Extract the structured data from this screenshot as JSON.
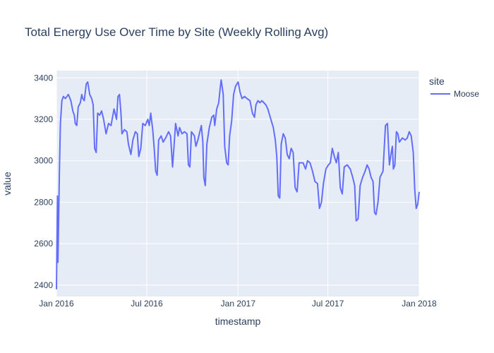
{
  "chart_data": {
    "type": "line",
    "title": "Total Energy Use Over Time by Site (Weekly Rolling Avg)",
    "xlabel": "timestamp",
    "ylabel": "value",
    "x_range": [
      "2016-01-01",
      "2018-01-01"
    ],
    "ylim": [
      2345,
      3435
    ],
    "x_ticks": [
      {
        "date": "2016-01-01",
        "label": "Jan 2016"
      },
      {
        "date": "2016-07-01",
        "label": "Jul 2016"
      },
      {
        "date": "2017-01-01",
        "label": "Jan 2017"
      },
      {
        "date": "2017-07-01",
        "label": "Jul 2017"
      },
      {
        "date": "2018-01-01",
        "label": "Jan 2018"
      }
    ],
    "y_ticks": [
      2400,
      2600,
      2800,
      3000,
      3200,
      3400
    ],
    "grid": true,
    "legend": {
      "title": "site",
      "position": "right"
    },
    "series": [
      {
        "name": "Moose",
        "color": "#636efa",
        "points": [
          [
            "2016-01-01",
            2380
          ],
          [
            "2016-01-03",
            2830
          ],
          [
            "2016-01-04",
            2510
          ],
          [
            "2016-01-07",
            2950
          ],
          [
            "2016-01-09",
            3180
          ],
          [
            "2016-01-12",
            3290
          ],
          [
            "2016-01-15",
            3310
          ],
          [
            "2016-01-19",
            3300
          ],
          [
            "2016-01-25",
            3320
          ],
          [
            "2016-01-30",
            3290
          ],
          [
            "2016-02-03",
            3240
          ],
          [
            "2016-02-06",
            3220
          ],
          [
            "2016-02-08",
            3180
          ],
          [
            "2016-02-11",
            3170
          ],
          [
            "2016-02-14",
            3260
          ],
          [
            "2016-02-18",
            3280
          ],
          [
            "2016-02-21",
            3320
          ],
          [
            "2016-02-23",
            3300
          ],
          [
            "2016-02-26",
            3290
          ],
          [
            "2016-03-01",
            3370
          ],
          [
            "2016-03-04",
            3380
          ],
          [
            "2016-03-08",
            3320
          ],
          [
            "2016-03-12",
            3300
          ],
          [
            "2016-03-15",
            3270
          ],
          [
            "2016-03-18",
            3060
          ],
          [
            "2016-03-21",
            3040
          ],
          [
            "2016-03-24",
            3230
          ],
          [
            "2016-03-28",
            3220
          ],
          [
            "2016-04-01",
            3240
          ],
          [
            "2016-04-05",
            3200
          ],
          [
            "2016-04-10",
            3130
          ],
          [
            "2016-04-15",
            3180
          ],
          [
            "2016-04-20",
            3170
          ],
          [
            "2016-04-26",
            3250
          ],
          [
            "2016-05-01",
            3200
          ],
          [
            "2016-05-04",
            3310
          ],
          [
            "2016-05-07",
            3320
          ],
          [
            "2016-05-10",
            3230
          ],
          [
            "2016-05-12",
            3130
          ],
          [
            "2016-05-17",
            3150
          ],
          [
            "2016-05-22",
            3140
          ],
          [
            "2016-05-25",
            3080
          ],
          [
            "2016-05-30",
            3030
          ],
          [
            "2016-06-03",
            3100
          ],
          [
            "2016-06-08",
            3140
          ],
          [
            "2016-06-12",
            3130
          ],
          [
            "2016-06-15",
            3020
          ],
          [
            "2016-06-19",
            3060
          ],
          [
            "2016-06-23",
            3180
          ],
          [
            "2016-06-28",
            3170
          ],
          [
            "2016-07-03",
            3200
          ],
          [
            "2016-07-06",
            3170
          ],
          [
            "2016-07-09",
            3230
          ],
          [
            "2016-07-13",
            3150
          ],
          [
            "2016-07-16",
            3060
          ],
          [
            "2016-07-19",
            2950
          ],
          [
            "2016-07-22",
            2930
          ],
          [
            "2016-07-25",
            3100
          ],
          [
            "2016-07-30",
            3120
          ],
          [
            "2016-08-03",
            3090
          ],
          [
            "2016-08-08",
            3110
          ],
          [
            "2016-08-14",
            3140
          ],
          [
            "2016-08-18",
            3120
          ],
          [
            "2016-08-22",
            2970
          ],
          [
            "2016-08-25",
            3070
          ],
          [
            "2016-08-28",
            3180
          ],
          [
            "2016-09-02",
            3120
          ],
          [
            "2016-09-05",
            3160
          ],
          [
            "2016-09-10",
            3130
          ],
          [
            "2016-09-15",
            3140
          ],
          [
            "2016-09-20",
            3130
          ],
          [
            "2016-09-23",
            2980
          ],
          [
            "2016-09-26",
            2970
          ],
          [
            "2016-09-29",
            3140
          ],
          [
            "2016-10-05",
            3120
          ],
          [
            "2016-10-08",
            3070
          ],
          [
            "2016-10-12",
            3100
          ],
          [
            "2016-10-16",
            3140
          ],
          [
            "2016-10-19",
            3170
          ],
          [
            "2016-10-22",
            3090
          ],
          [
            "2016-10-24",
            2920
          ],
          [
            "2016-10-27",
            2880
          ],
          [
            "2016-10-30",
            3080
          ],
          [
            "2016-11-04",
            3160
          ],
          [
            "2016-11-09",
            3210
          ],
          [
            "2016-11-13",
            3220
          ],
          [
            "2016-11-15",
            3170
          ],
          [
            "2016-11-19",
            3250
          ],
          [
            "2016-11-23",
            3280
          ],
          [
            "2016-11-26",
            3350
          ],
          [
            "2016-11-28",
            3390
          ],
          [
            "2016-12-02",
            3320
          ],
          [
            "2016-12-05",
            3070
          ],
          [
            "2016-12-09",
            2990
          ],
          [
            "2016-12-12",
            2980
          ],
          [
            "2016-12-15",
            3120
          ],
          [
            "2016-12-19",
            3190
          ],
          [
            "2016-12-23",
            3320
          ],
          [
            "2016-12-27",
            3360
          ],
          [
            "2017-01-01",
            3380
          ],
          [
            "2017-01-05",
            3330
          ],
          [
            "2017-01-09",
            3300
          ],
          [
            "2017-01-14",
            3310
          ],
          [
            "2017-01-19",
            3300
          ],
          [
            "2017-01-25",
            3290
          ],
          [
            "2017-01-30",
            3230
          ],
          [
            "2017-02-03",
            3210
          ],
          [
            "2017-02-06",
            3270
          ],
          [
            "2017-02-10",
            3290
          ],
          [
            "2017-02-14",
            3280
          ],
          [
            "2017-02-18",
            3290
          ],
          [
            "2017-02-22",
            3280
          ],
          [
            "2017-02-26",
            3270
          ],
          [
            "2017-03-02",
            3250
          ],
          [
            "2017-03-08",
            3200
          ],
          [
            "2017-03-13",
            3160
          ],
          [
            "2017-03-17",
            3100
          ],
          [
            "2017-03-20",
            3020
          ],
          [
            "2017-03-23",
            2830
          ],
          [
            "2017-03-26",
            2820
          ],
          [
            "2017-03-29",
            3080
          ],
          [
            "2017-04-02",
            3130
          ],
          [
            "2017-04-06",
            3110
          ],
          [
            "2017-04-10",
            3030
          ],
          [
            "2017-04-14",
            3010
          ],
          [
            "2017-04-18",
            3060
          ],
          [
            "2017-04-22",
            3040
          ],
          [
            "2017-04-26",
            2870
          ],
          [
            "2017-04-30",
            2850
          ],
          [
            "2017-05-04",
            2990
          ],
          [
            "2017-05-12",
            2990
          ],
          [
            "2017-05-17",
            2960
          ],
          [
            "2017-05-21",
            3000
          ],
          [
            "2017-05-26",
            2990
          ],
          [
            "2017-05-31",
            2950
          ],
          [
            "2017-06-05",
            2900
          ],
          [
            "2017-06-10",
            2890
          ],
          [
            "2017-06-14",
            2770
          ],
          [
            "2017-06-18",
            2800
          ],
          [
            "2017-06-22",
            2890
          ],
          [
            "2017-06-27",
            2960
          ],
          [
            "2017-07-02",
            2980
          ],
          [
            "2017-07-06",
            2990
          ],
          [
            "2017-07-10",
            3060
          ],
          [
            "2017-07-14",
            3020
          ],
          [
            "2017-07-18",
            2990
          ],
          [
            "2017-07-22",
            3040
          ],
          [
            "2017-07-26",
            2870
          ],
          [
            "2017-07-30",
            2840
          ],
          [
            "2017-08-03",
            2970
          ],
          [
            "2017-08-09",
            2980
          ],
          [
            "2017-08-15",
            2960
          ],
          [
            "2017-08-20",
            2920
          ],
          [
            "2017-08-24",
            2880
          ],
          [
            "2017-08-27",
            2710
          ],
          [
            "2017-08-31",
            2720
          ],
          [
            "2017-09-04",
            2880
          ],
          [
            "2017-09-09",
            2920
          ],
          [
            "2017-09-14",
            2950
          ],
          [
            "2017-09-18",
            2980
          ],
          [
            "2017-09-22",
            2960
          ],
          [
            "2017-09-26",
            2920
          ],
          [
            "2017-09-30",
            2900
          ],
          [
            "2017-10-03",
            2750
          ],
          [
            "2017-10-06",
            2740
          ],
          [
            "2017-10-10",
            2800
          ],
          [
            "2017-10-14",
            2920
          ],
          [
            "2017-10-20",
            2950
          ],
          [
            "2017-10-25",
            3170
          ],
          [
            "2017-10-29",
            3180
          ],
          [
            "2017-11-02",
            2980
          ],
          [
            "2017-11-05",
            3030
          ],
          [
            "2017-11-08",
            3070
          ],
          [
            "2017-11-10",
            2960
          ],
          [
            "2017-11-13",
            2980
          ],
          [
            "2017-11-16",
            3140
          ],
          [
            "2017-11-19",
            3130
          ],
          [
            "2017-11-22",
            3090
          ],
          [
            "2017-11-28",
            3110
          ],
          [
            "2017-12-04",
            3100
          ],
          [
            "2017-12-08",
            3110
          ],
          [
            "2017-12-12",
            3140
          ],
          [
            "2017-12-16",
            3120
          ],
          [
            "2017-12-20",
            3040
          ],
          [
            "2017-12-23",
            2860
          ],
          [
            "2017-12-26",
            2770
          ],
          [
            "2017-12-29",
            2790
          ],
          [
            "2018-01-01",
            2850
          ]
        ]
      }
    ]
  }
}
